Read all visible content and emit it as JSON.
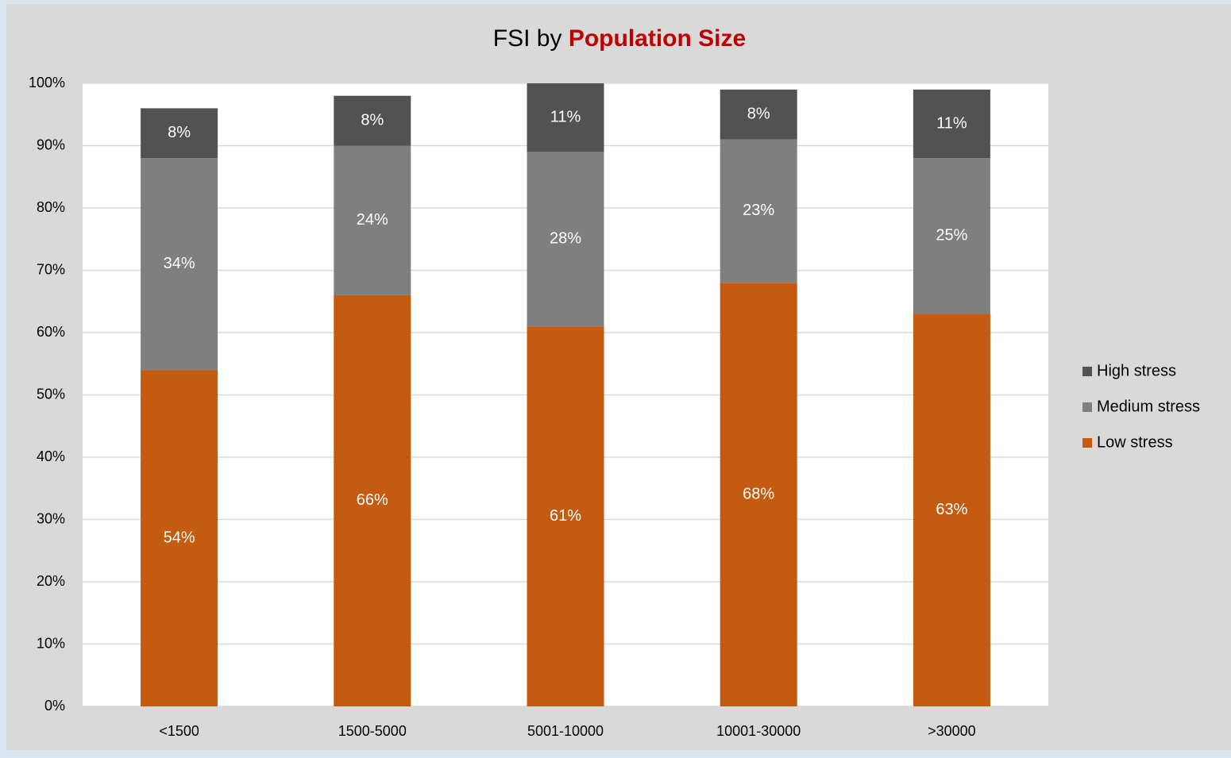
{
  "chart_data": {
    "type": "stacked_bar",
    "title": "FSI by",
    "title_emphasis": "Population Size",
    "categories": [
      "<1500",
      "1500-5000",
      "5001-10000",
      "10001-30000",
      ">30000"
    ],
    "series": [
      {
        "name": "Low stress",
        "color": "#c55a11",
        "values": [
          54,
          66,
          61,
          68,
          63
        ],
        "value_labels": [
          "54%",
          "66%",
          "61%",
          "68%",
          "63%"
        ]
      },
      {
        "name": "Medium stress",
        "color": "#7f7f7f",
        "values": [
          34,
          24,
          28,
          23,
          25
        ],
        "value_labels": [
          "34%",
          "24%",
          "28%",
          "23%",
          "25%"
        ]
      },
      {
        "name": "High stress",
        "color": "#525252",
        "values": [
          8,
          8,
          11,
          8,
          11
        ],
        "value_labels": [
          "8%",
          "8%",
          "11%",
          "8%",
          "11%"
        ]
      }
    ],
    "ylim": [
      0,
      100
    ],
    "yticks": [
      {
        "value": 0,
        "label": "0%"
      },
      {
        "value": 10,
        "label": "10%"
      },
      {
        "value": 20,
        "label": "20%"
      },
      {
        "value": 30,
        "label": "30%"
      },
      {
        "value": 40,
        "label": "40%"
      },
      {
        "value": 50,
        "label": "50%"
      },
      {
        "value": 60,
        "label": "60%"
      },
      {
        "value": 70,
        "label": "70%"
      },
      {
        "value": 80,
        "label": "80%"
      },
      {
        "value": 90,
        "label": "90%"
      },
      {
        "value": 100,
        "label": "100%"
      }
    ],
    "grid": true,
    "legend": "right",
    "title_emphasis_color": "#c00000"
  }
}
